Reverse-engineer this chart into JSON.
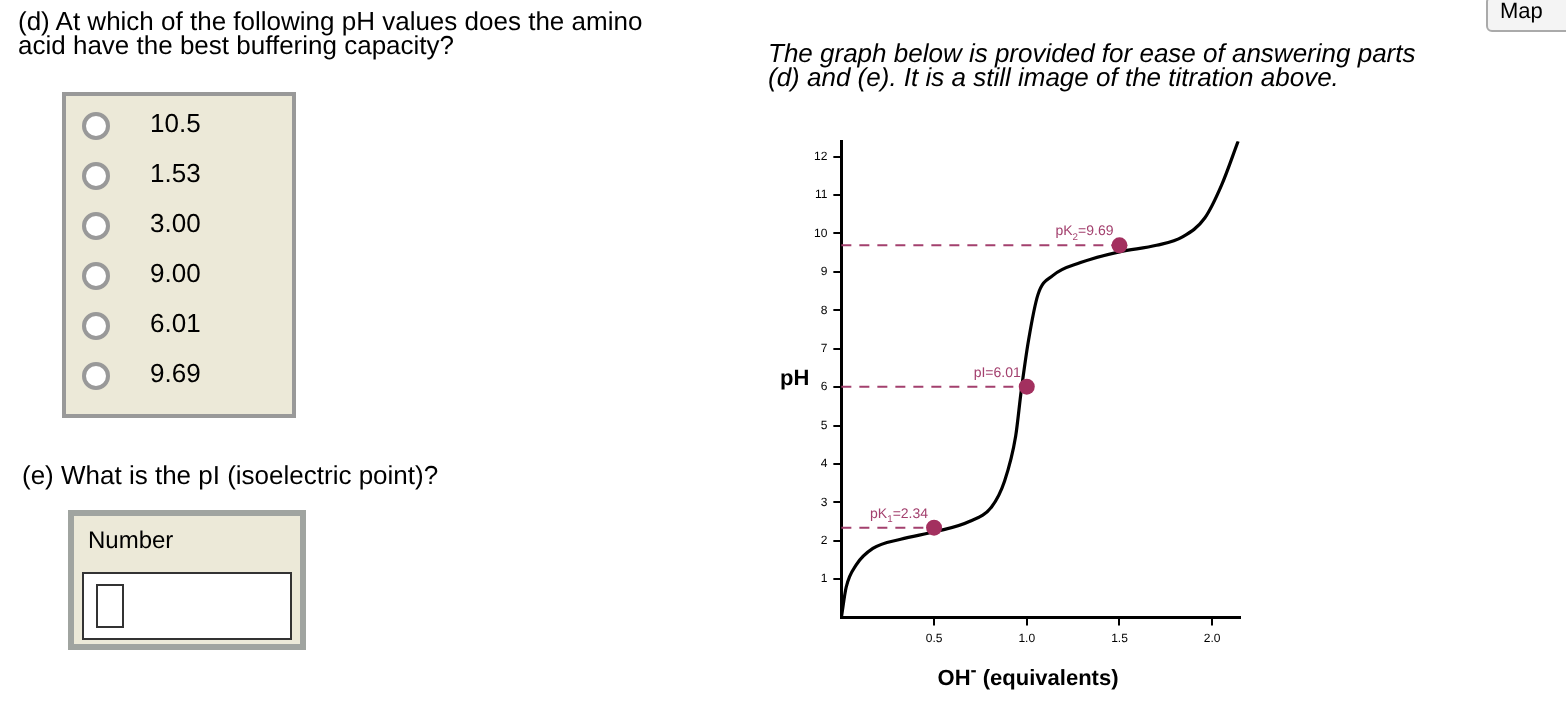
{
  "chart_data": {
    "type": "line",
    "title": "The graph below is provided for ease of answering parts (d) and (e). It is a still image of the titration above.",
    "xlabel": "OH$^{-}$ (equivalents)",
    "ylabel": "pH",
    "xlim": [
      0,
      2.15
    ],
    "xticks": [
      {
        "value": 0.5,
        "label": "0.5"
      },
      {
        "value": 1,
        "label": "1.0"
      },
      {
        "value": 1.5,
        "label": "1.5"
      },
      {
        "value": 2,
        "label": "2.0"
      }
    ],
    "ylim": [
      0,
      12.4
    ],
    "yticks": [
      1,
      2,
      3,
      4,
      5,
      6,
      7,
      8,
      9,
      10,
      11,
      12
    ],
    "grid": false,
    "legend": false,
    "series": [
      {
        "color": "#000000",
        "marker": "none",
        "x": [
          0,
          0.026,
          0.08,
          0.17,
          0.32,
          0.51,
          0.69,
          0.81,
          0.88,
          0.94,
          0.97,
          1.01,
          1.06,
          1.14,
          1.29,
          1.5,
          1.7,
          1.84,
          1.96,
          2.05,
          2.14
        ],
        "values": [
          0,
          0.79,
          1.37,
          1.8,
          2.04,
          2.24,
          2.5,
          2.88,
          3.55,
          4.72,
          5.9,
          7.23,
          8.4,
          8.9,
          9.24,
          9.52,
          9.69,
          9.91,
          10.4,
          11.25,
          12.4
        ]
      },
      {
        "type": "scatter",
        "color": "#a3305f",
        "marker": "circle",
        "x": [
          0.5,
          1,
          1.5
        ],
        "values": [
          2.34,
          6.01,
          9.69
        ]
      }
    ],
    "ref_lines": [
      {
        "axis": "y",
        "value": 2.34,
        "color": "#a3406e",
        "line_style": "dashed"
      },
      {
        "axis": "y",
        "value": 6.01,
        "color": "#a3406e",
        "line_style": "dashed"
      },
      {
        "axis": "y",
        "value": 9.69,
        "color": "#a3406e",
        "line_style": "dashed"
      }
    ],
    "annotations": [
      {
        "text": "pK$_{1}$=2.34",
        "x": 0.5,
        "y": 2.34
      },
      {
        "text": "pI=6.01",
        "x": 1,
        "y": 6.01
      },
      {
        "text": "pK$_{2}$=9.69",
        "x": 1.5,
        "y": 9.69
      },
      "(d) At which of the following pH values does the amino acid have the best buffering capacity?",
      "10.5",
      "1.53",
      "3.00",
      "9.00",
      "6.01",
      "9.69",
      "(e) What is the pI (isoelectric point)?",
      "Number",
      "Map"
    ]
  }
}
